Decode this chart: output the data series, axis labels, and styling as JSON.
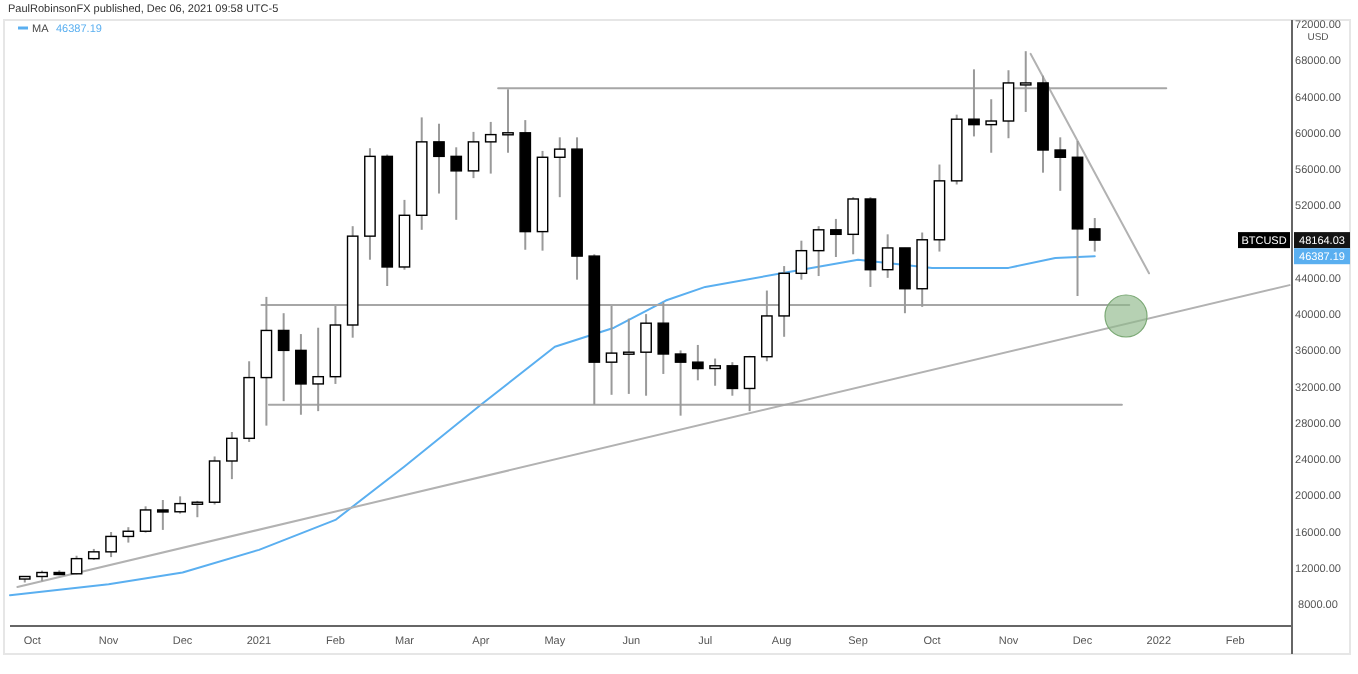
{
  "chart_data": {
    "type": "candlestick",
    "title": "PaulRobinsonFX published, Dec 06, 2021 09:58 UTC-5",
    "ylabel": "USD",
    "xlim": [
      "2020-09-22",
      "2022-02-24"
    ],
    "ylim": [
      5600,
      72000
    ],
    "xticks": [
      {
        "value": "2020-10-01",
        "label": "Oct"
      },
      {
        "value": "2020-11-01",
        "label": "Nov"
      },
      {
        "value": "2020-12-01",
        "label": "Dec"
      },
      {
        "value": "2021-01-01",
        "label": "2021"
      },
      {
        "value": "2021-02-01",
        "label": "Feb"
      },
      {
        "value": "2021-03-01",
        "label": "Mar"
      },
      {
        "value": "2021-04-01",
        "label": "Apr"
      },
      {
        "value": "2021-05-01",
        "label": "May"
      },
      {
        "value": "2021-06-01",
        "label": "Jun"
      },
      {
        "value": "2021-07-01",
        "label": "Jul"
      },
      {
        "value": "2021-08-01",
        "label": "Aug"
      },
      {
        "value": "2021-09-01",
        "label": "Sep"
      },
      {
        "value": "2021-10-01",
        "label": "Oct"
      },
      {
        "value": "2021-11-01",
        "label": "Nov"
      },
      {
        "value": "2021-12-01",
        "label": "Dec"
      },
      {
        "value": "2022-01-01",
        "label": "2022"
      },
      {
        "value": "2022-02-01",
        "label": "Feb"
      }
    ],
    "yticks": [
      {
        "value": 8000,
        "label": "8000.00"
      },
      {
        "value": 12000,
        "label": "12000.00"
      },
      {
        "value": 16000,
        "label": "16000.00"
      },
      {
        "value": 20000,
        "label": "20000.00"
      },
      {
        "value": 24000,
        "label": "24000.00"
      },
      {
        "value": 28000,
        "label": "28000.00"
      },
      {
        "value": 32000,
        "label": "32000.00"
      },
      {
        "value": 36000,
        "label": "36000.00"
      },
      {
        "value": 40000,
        "label": "40000.00"
      },
      {
        "value": 44000,
        "label": "44000.00"
      },
      {
        "value": 52000,
        "label": "52000.00"
      },
      {
        "value": 56000,
        "label": "56000.00"
      },
      {
        "value": 60000,
        "label": "60000.00"
      },
      {
        "value": 64000,
        "label": "64000.00"
      },
      {
        "value": 68000,
        "label": "68000.00"
      },
      {
        "value": 72000,
        "label": "72000.00"
      }
    ],
    "grid": false,
    "legend": "top left",
    "series": [
      {
        "name": "BTCUSD",
        "color": "#000000",
        "x": [
          "2020-09-28",
          "2020-10-05",
          "2020-10-12",
          "2020-10-19",
          "2020-10-26",
          "2020-11-02",
          "2020-11-09",
          "2020-11-16",
          "2020-11-23",
          "2020-11-30",
          "2020-12-07",
          "2020-12-14",
          "2020-12-21",
          "2020-12-28",
          "2021-01-04",
          "2021-01-11",
          "2021-01-18",
          "2021-01-25",
          "2021-02-01",
          "2021-02-08",
          "2021-02-15",
          "2021-02-22",
          "2021-03-01",
          "2021-03-08",
          "2021-03-15",
          "2021-03-22",
          "2021-03-29",
          "2021-04-05",
          "2021-04-12",
          "2021-04-19",
          "2021-04-26",
          "2021-05-03",
          "2021-05-10",
          "2021-05-17",
          "2021-05-24",
          "2021-05-31",
          "2021-06-07",
          "2021-06-14",
          "2021-06-21",
          "2021-06-28",
          "2021-07-05",
          "2021-07-12",
          "2021-07-19",
          "2021-07-26",
          "2021-08-02",
          "2021-08-09",
          "2021-08-16",
          "2021-08-23",
          "2021-08-30",
          "2021-09-06",
          "2021-09-13",
          "2021-09-20",
          "2021-09-27",
          "2021-10-04",
          "2021-10-11",
          "2021-10-18",
          "2021-10-25",
          "2021-11-01",
          "2021-11-08",
          "2021-11-15",
          "2021-11-22",
          "2021-11-29",
          "2021-12-06"
        ],
        "ohlc": [
          [
            10780,
            11100,
            10400,
            11060
          ],
          [
            11060,
            11700,
            10530,
            11500
          ],
          [
            11500,
            11740,
            11200,
            11360
          ],
          [
            11360,
            13350,
            11300,
            13030
          ],
          [
            13030,
            14100,
            12900,
            13780
          ],
          [
            13780,
            15970,
            13200,
            15480
          ],
          [
            15480,
            16500,
            14800,
            16050
          ],
          [
            16050,
            18800,
            15900,
            18400
          ],
          [
            18400,
            19500,
            16200,
            18200
          ],
          [
            18200,
            19900,
            18000,
            19100
          ],
          [
            19100,
            19400,
            17600,
            19250
          ],
          [
            19250,
            24300,
            19000,
            23800
          ],
          [
            23800,
            27000,
            21800,
            26300
          ],
          [
            26300,
            34800,
            25900,
            33000
          ],
          [
            33000,
            41900,
            27700,
            38200
          ],
          [
            38200,
            40100,
            30400,
            36000
          ],
          [
            36000,
            37800,
            28900,
            32300
          ],
          [
            32300,
            38500,
            29300,
            33100
          ],
          [
            33100,
            40900,
            32300,
            38800
          ],
          [
            38800,
            49700,
            37400,
            48600
          ],
          [
            48600,
            58300,
            46000,
            57400
          ],
          [
            57400,
            57600,
            43100,
            45200
          ],
          [
            45200,
            52600,
            44900,
            50900
          ],
          [
            50900,
            61700,
            49300,
            59000
          ],
          [
            59000,
            61000,
            53300,
            57400
          ],
          [
            57400,
            58400,
            50400,
            55800
          ],
          [
            55800,
            60100,
            55000,
            59000
          ],
          [
            59000,
            61200,
            55500,
            59800
          ],
          [
            59800,
            64800,
            57800,
            60000
          ],
          [
            60000,
            61400,
            47100,
            49100
          ],
          [
            49100,
            58000,
            47000,
            57300
          ],
          [
            57300,
            59500,
            52900,
            58200
          ],
          [
            58200,
            59500,
            43800,
            46400
          ],
          [
            46400,
            46600,
            30000,
            34700
          ],
          [
            34700,
            40900,
            31100,
            35700
          ],
          [
            35700,
            39500,
            31200,
            35800
          ],
          [
            35800,
            40000,
            31000,
            39000
          ],
          [
            39000,
            41300,
            33400,
            35600
          ],
          [
            35600,
            36000,
            28800,
            34700
          ],
          [
            34700,
            36600,
            32700,
            34000
          ],
          [
            34000,
            35100,
            32100,
            34300
          ],
          [
            34300,
            34700,
            31000,
            31800
          ],
          [
            31800,
            35400,
            29300,
            35300
          ],
          [
            35300,
            42600,
            34800,
            39800
          ],
          [
            39800,
            45300,
            37500,
            44500
          ],
          [
            44500,
            48100,
            43800,
            47000
          ],
          [
            47000,
            49700,
            44200,
            49300
          ],
          [
            49300,
            50500,
            46300,
            48800
          ],
          [
            48800,
            52900,
            46600,
            52700
          ],
          [
            52700,
            52900,
            43000,
            44900
          ],
          [
            44900,
            48800,
            44000,
            47300
          ],
          [
            47300,
            47300,
            40100,
            42800
          ],
          [
            42800,
            49000,
            40800,
            48200
          ],
          [
            48200,
            56500,
            46900,
            54700
          ],
          [
            54700,
            62000,
            54300,
            61500
          ],
          [
            61500,
            67000,
            59600,
            60900
          ],
          [
            60900,
            63700,
            57800,
            61300
          ],
          [
            61300,
            66900,
            59400,
            65500
          ],
          [
            65500,
            69000,
            62300,
            65500
          ],
          [
            65500,
            66300,
            55600,
            58100
          ],
          [
            58100,
            59500,
            53600,
            57300
          ],
          [
            57300,
            59100,
            42000,
            49400
          ],
          [
            49400,
            50600,
            46900,
            48164.03
          ]
        ]
      },
      {
        "name": "MA",
        "type": "line",
        "color": "#5aaff0",
        "x": [
          "2020-09-22",
          "2020-11-01",
          "2020-12-01",
          "2021-01-01",
          "2021-02-01",
          "2021-03-01",
          "2021-04-01",
          "2021-05-01",
          "2021-05-25",
          "2021-06-15",
          "2021-07-01",
          "2021-08-01",
          "2021-09-01",
          "2021-10-01",
          "2021-11-01",
          "2021-11-20",
          "2021-12-06"
        ],
        "values": [
          9000,
          10200,
          11500,
          14000,
          17300,
          23200,
          30000,
          36400,
          38500,
          41500,
          43000,
          44500,
          46000,
          45100,
          45100,
          46200,
          46387.19
        ]
      },
      {
        "type": "line",
        "color": "#b2b2b2",
        "x": [
          "2020-09-25",
          "2022-02-23"
        ],
        "values": [
          9900,
          43200
        ]
      },
      {
        "type": "line",
        "color": "#b2b2b2",
        "x": [
          "2021-11-10",
          "2021-12-28"
        ],
        "values": [
          68700,
          44500
        ]
      },
      {
        "type": "line",
        "color": "#a6a6a6",
        "x": [
          "2021-04-08",
          "2022-01-04"
        ],
        "values": [
          64900,
          64900
        ]
      },
      {
        "type": "line",
        "color": "#a6a6a6",
        "x": [
          "2021-01-02",
          "2021-12-20"
        ],
        "values": [
          41000,
          41000
        ]
      },
      {
        "type": "line",
        "color": "#a6a6a6",
        "x": [
          "2021-01-05",
          "2021-12-17"
        ],
        "values": [
          30000,
          30000
        ]
      }
    ],
    "annotations": [
      "48164.03",
      "46387.19"
    ]
  }
}
